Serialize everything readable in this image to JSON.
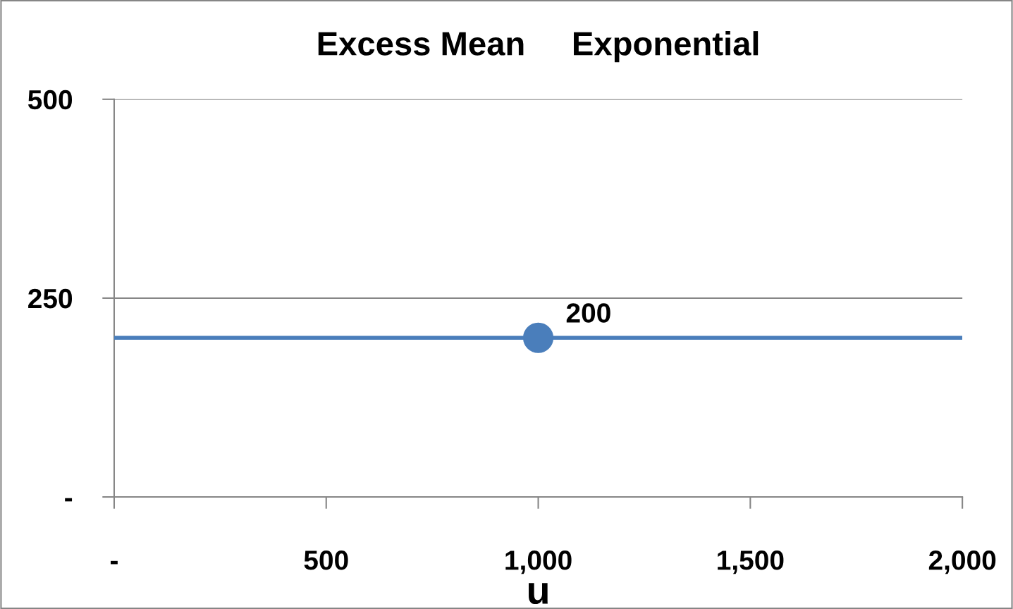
{
  "chart_data": {
    "type": "line",
    "title": "Excess Mean     Exponential",
    "xlabel": "u",
    "xlim": [
      0,
      2000
    ],
    "xticks": [
      {
        "value": 0,
        "label": "-"
      },
      500,
      {
        "value": 1000,
        "label": "1,000"
      },
      {
        "value": 1500,
        "label": "1,500"
      },
      {
        "value": 2000,
        "label": "2,000"
      }
    ],
    "ylim": [
      0,
      500
    ],
    "yticks": [
      {
        "value": 0,
        "label": "-"
      },
      250,
      500
    ],
    "grid": "y",
    "series": [
      {
        "color": "#4a7ebb",
        "x": [
          0,
          2000
        ],
        "values": [
          200,
          200
        ]
      },
      {
        "type": "scatter",
        "color": "#4a7ebb",
        "marker": "circle",
        "x": [
          1000
        ],
        "values": [
          200
        ],
        "value_labels": [
          "200"
        ]
      }
    ]
  }
}
